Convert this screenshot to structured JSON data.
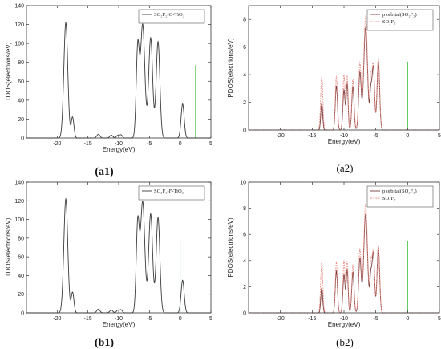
{
  "colors": {
    "total": "#3a3a3a",
    "p_orbital": "#7a3a3a",
    "so2f2": "#e8908a",
    "fermi": "#2db82d",
    "frame": "#333333"
  },
  "chart_data": [
    {
      "id": "a1",
      "caption": "(a1)",
      "type": "line",
      "xlabel": "Energy(eV)",
      "ylabel": "TDOS(electrions/eV)",
      "xlim": [
        -25,
        5
      ],
      "ylim": [
        0,
        140
      ],
      "xticks": [
        -20,
        -15,
        -10,
        -5,
        0,
        5
      ],
      "yticks": [
        0,
        20,
        40,
        60,
        80,
        100,
        120,
        140
      ],
      "fermi": 2.5,
      "legend": "top-right",
      "series": [
        {
          "name": "SO2F2-O-TiO2",
          "legend_label": "SO₂F₂-O-TiO₂",
          "color": "#3a3a3a",
          "style": "solid",
          "peaks": [
            [
              -18.6,
              122,
              0.32
            ],
            [
              -17.5,
              22,
              0.22
            ],
            [
              -13.3,
              4,
              0.25
            ],
            [
              -11.2,
              3,
              0.25
            ],
            [
              -10.1,
              3,
              0.25
            ],
            [
              -9.6,
              3,
              0.2
            ],
            [
              -6.9,
              94,
              0.25
            ],
            [
              -6.1,
              120,
              0.35
            ],
            [
              -4.8,
              106,
              0.32
            ],
            [
              -3.6,
              102,
              0.3
            ],
            [
              0.4,
              36,
              0.25
            ]
          ]
        }
      ]
    },
    {
      "id": "a2",
      "caption": "(a2)",
      "type": "line",
      "xlabel": "Energy(eV)",
      "ylabel": "PDOS(electrions/eV)",
      "xlim": [
        -25,
        5
      ],
      "ylim": [
        0,
        9
      ],
      "xticks": [
        -20,
        -15,
        -10,
        -5,
        0,
        5
      ],
      "yticks": [
        0,
        2,
        4,
        6,
        8
      ],
      "fermi": 0,
      "legend": "top-right",
      "series": [
        {
          "name": "p orbital(SO2F2)",
          "legend_label": "p orbital(SO₂F₂)",
          "color": "#7a3a3a",
          "style": "solid",
          "peaks": [
            [
              -13.5,
              1.9,
              0.15
            ],
            [
              -11.2,
              3.2,
              0.17
            ],
            [
              -10.0,
              2.9,
              0.17
            ],
            [
              -9.5,
              3.3,
              0.15
            ],
            [
              -8.6,
              3.1,
              0.18
            ],
            [
              -7.5,
              4.1,
              0.2
            ],
            [
              -6.6,
              7.4,
              0.3
            ],
            [
              -5.8,
              2.4,
              0.15
            ],
            [
              -5.4,
              4.6,
              0.2
            ],
            [
              -4.6,
              5.0,
              0.2
            ]
          ]
        },
        {
          "name": "SO2F2",
          "legend_label": "SO₂F₂",
          "color": "#e8908a",
          "style": "dashed",
          "peaks": [
            [
              -13.5,
              3.9,
              0.17
            ],
            [
              -11.2,
              3.9,
              0.17
            ],
            [
              -10.0,
              4.0,
              0.17
            ],
            [
              -9.5,
              3.9,
              0.15
            ],
            [
              -8.6,
              3.7,
              0.18
            ],
            [
              -7.5,
              4.8,
              0.2
            ],
            [
              -6.6,
              8.2,
              0.3
            ],
            [
              -5.8,
              3.3,
              0.15
            ],
            [
              -5.4,
              4.8,
              0.2
            ],
            [
              -4.6,
              5.2,
              0.2
            ]
          ]
        }
      ]
    },
    {
      "id": "b1",
      "caption": "(b1)",
      "type": "line",
      "xlabel": "Energy(eV)",
      "ylabel": "TDOS(electrions/eV)",
      "xlim": [
        -25,
        5
      ],
      "ylim": [
        0,
        140
      ],
      "xticks": [
        -20,
        -15,
        -10,
        -5,
        0,
        5
      ],
      "yticks": [
        0,
        20,
        40,
        60,
        80,
        100,
        120,
        140
      ],
      "fermi": 0,
      "legend": "top-right",
      "series": [
        {
          "name": "SO2F2-F-TiO2",
          "legend_label": "SO₂F₂-F-TiO₂",
          "color": "#3a3a3a",
          "style": "solid",
          "peaks": [
            [
              -18.6,
              122,
              0.32
            ],
            [
              -17.5,
              22,
              0.22
            ],
            [
              -13.3,
              4,
              0.25
            ],
            [
              -11.2,
              3,
              0.25
            ],
            [
              -10.1,
              3,
              0.25
            ],
            [
              -9.6,
              3,
              0.2
            ],
            [
              -6.9,
              94,
              0.25
            ],
            [
              -6.1,
              119,
              0.35
            ],
            [
              -4.8,
              106,
              0.32
            ],
            [
              -3.6,
              102,
              0.3
            ],
            [
              0.4,
              35,
              0.25
            ]
          ]
        }
      ]
    },
    {
      "id": "b2",
      "caption": "(b2)",
      "type": "line",
      "xlabel": "Energy(eV)",
      "ylabel": "PDOS(electrions/eV)",
      "xlim": [
        -25,
        5
      ],
      "ylim": [
        0,
        10
      ],
      "xticks": [
        -20,
        -15,
        -10,
        -5,
        0,
        5
      ],
      "yticks": [
        0,
        2,
        4,
        6,
        8,
        10
      ],
      "fermi": 0,
      "legend": "top-right",
      "series": [
        {
          "name": "p orbital(SO2F2)",
          "legend_label": "p orbital(SO₂F₂)",
          "color": "#7a3a3a",
          "style": "solid",
          "peaks": [
            [
              -13.5,
              1.9,
              0.15
            ],
            [
              -11.2,
              3.2,
              0.17
            ],
            [
              -10.0,
              2.9,
              0.17
            ],
            [
              -9.5,
              3.3,
              0.15
            ],
            [
              -8.6,
              3.1,
              0.18
            ],
            [
              -7.5,
              4.1,
              0.2
            ],
            [
              -6.6,
              7.5,
              0.3
            ],
            [
              -5.8,
              2.4,
              0.15
            ],
            [
              -5.4,
              4.6,
              0.2
            ],
            [
              -4.6,
              5.0,
              0.2
            ]
          ]
        },
        {
          "name": "SO2F2",
          "legend_label": "SO₂F₂",
          "color": "#e8908a",
          "style": "dashed",
          "peaks": [
            [
              -13.5,
              3.9,
              0.17
            ],
            [
              -11.2,
              3.9,
              0.17
            ],
            [
              -10.0,
              4.0,
              0.17
            ],
            [
              -9.5,
              3.9,
              0.15
            ],
            [
              -8.6,
              3.7,
              0.18
            ],
            [
              -7.5,
              4.8,
              0.2
            ],
            [
              -6.6,
              8.3,
              0.3
            ],
            [
              -5.8,
              3.3,
              0.15
            ],
            [
              -5.4,
              4.8,
              0.2
            ],
            [
              -4.6,
              5.2,
              0.2
            ]
          ]
        }
      ]
    }
  ]
}
